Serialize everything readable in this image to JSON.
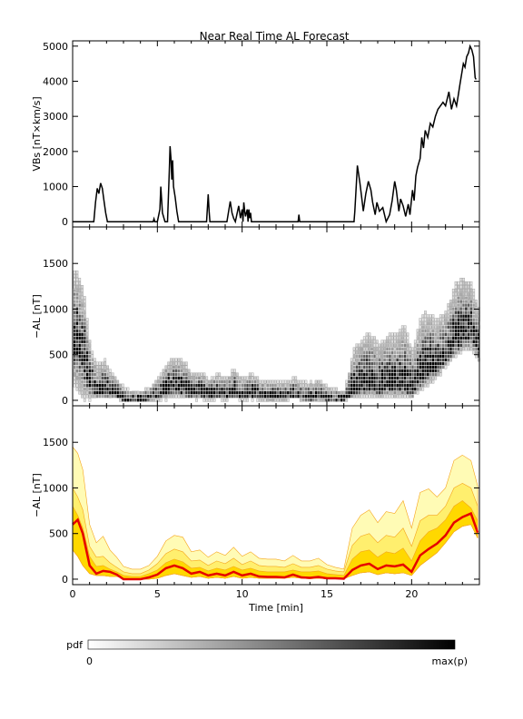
{
  "title": "Near Real Time AL Forecast",
  "colors": {
    "vbs_line": "#000000",
    "al_band_outer": "#fffbb5",
    "al_band_mid": "#ffef6e",
    "al_band_inner": "#ffd800",
    "al_band_edge": "#f5a41c",
    "al_median": "#e60000",
    "pdf_max": "#000000",
    "pdf_zero": "#ffffff"
  },
  "colorbar": {
    "label": "pdf",
    "min_label": "0",
    "max_label": "max(p)"
  },
  "chart_data": [
    {
      "type": "line",
      "name": "vbs-panel",
      "ylabel": "VBs [nT×km/s]",
      "xlim": [
        0,
        24
      ],
      "ylim": [
        -150,
        5150
      ],
      "yticks": [
        0,
        1000,
        2000,
        3000,
        4000,
        5000
      ],
      "xticks": [
        0,
        5,
        10,
        15,
        20
      ],
      "series": [
        {
          "x": [
            0,
            1.25,
            1.35,
            1.45,
            1.55,
            1.65,
            1.75,
            1.85,
            1.95,
            2.05,
            2.2,
            4.75,
            4.8,
            4.85,
            5.0,
            5.15,
            5.2,
            5.3,
            5.45,
            5.6,
            5.7,
            5.75,
            5.8,
            5.85,
            5.9,
            5.95,
            6.05,
            6.15,
            6.25,
            6.35,
            7.9,
            8.0,
            8.05,
            8.1,
            9.1,
            9.3,
            9.4,
            9.5,
            9.6,
            9.8,
            9.9,
            10.0,
            10.05,
            10.1,
            10.15,
            10.2,
            10.3,
            10.35,
            10.4,
            10.45,
            10.5,
            10.55,
            10.65,
            13.3,
            13.35,
            13.4,
            16.6,
            16.65,
            16.8,
            16.95,
            17.05,
            17.15,
            17.3,
            17.45,
            17.6,
            17.7,
            17.85,
            17.95,
            18.1,
            18.3,
            18.5,
            18.7,
            18.85,
            19.0,
            19.1,
            19.25,
            19.35,
            19.5,
            19.65,
            19.8,
            19.9,
            20.05,
            20.15,
            20.25,
            20.35,
            20.5,
            20.6,
            20.7,
            20.8,
            20.95,
            21.1,
            21.25,
            21.4,
            21.55,
            21.7,
            21.85,
            22.0,
            22.2,
            22.35,
            22.5,
            22.65,
            22.75,
            22.85,
            22.95,
            23.05,
            23.15,
            23.25,
            23.35,
            23.45,
            23.55,
            23.65,
            23.75,
            23.8
          ],
          "y": [
            0,
            0,
            550,
            950,
            800,
            1100,
            950,
            600,
            250,
            0,
            0,
            0,
            80,
            0,
            0,
            350,
            1000,
            250,
            0,
            0,
            1400,
            2150,
            1800,
            1200,
            1750,
            1000,
            700,
            300,
            0,
            0,
            0,
            780,
            300,
            0,
            0,
            580,
            250,
            100,
            0,
            450,
            100,
            350,
            0,
            550,
            300,
            150,
            350,
            0,
            350,
            100,
            250,
            0,
            0,
            0,
            200,
            0,
            0,
            300,
            1600,
            1100,
            700,
            300,
            800,
            1150,
            900,
            550,
            200,
            550,
            300,
            400,
            0,
            200,
            600,
            1150,
            900,
            300,
            650,
            450,
            150,
            500,
            200,
            900,
            600,
            1300,
            1550,
            1800,
            2400,
            2100,
            2600,
            2400,
            2800,
            2700,
            3000,
            3200,
            3300,
            3400,
            3300,
            3700,
            3200,
            3500,
            3300,
            3600,
            3900,
            4200,
            4500,
            4400,
            4700,
            4800,
            5000,
            4900,
            4700,
            4100,
            4050
          ]
        }
      ]
    },
    {
      "type": "heatmap",
      "name": "al-pdf-panel",
      "ylabel": "−AL [nT]",
      "xlim": [
        0,
        24
      ],
      "ylim": [
        -60,
        1900
      ],
      "yticks": [
        0,
        500,
        1000,
        1500
      ],
      "xticks": [
        0,
        5,
        10,
        15,
        20
      ],
      "pdf_scale": "0 to max(p)"
    },
    {
      "type": "area",
      "name": "al-forecast-panel",
      "ylabel": "−AL [nT]",
      "xlabel": "Time [min]",
      "xlim": [
        0,
        24
      ],
      "ylim": [
        -60,
        1900
      ],
      "yticks": [
        0,
        500,
        1000,
        1500
      ],
      "xticks": [
        0,
        5,
        10,
        15,
        20
      ],
      "x": [
        0,
        0.3,
        0.6,
        1.0,
        1.4,
        1.8,
        2.2,
        2.6,
        3.0,
        3.5,
        4.0,
        4.5,
        5.0,
        5.5,
        6.0,
        6.5,
        7.0,
        7.5,
        8.0,
        8.5,
        9.0,
        9.5,
        10.0,
        10.5,
        11.0,
        11.5,
        12.0,
        12.5,
        13.0,
        13.5,
        14.0,
        14.5,
        15.0,
        15.5,
        16.0,
        16.5,
        17.0,
        17.5,
        18.0,
        18.5,
        19.0,
        19.5,
        20.0,
        20.5,
        21.0,
        21.5,
        22.0,
        22.5,
        23.0,
        23.5,
        23.9
      ],
      "series": [
        {
          "role": "upper-envelope",
          "values": [
            1450,
            1380,
            1200,
            600,
            400,
            470,
            320,
            240,
            140,
            110,
            110,
            150,
            250,
            420,
            480,
            460,
            300,
            320,
            240,
            300,
            260,
            350,
            250,
            300,
            230,
            220,
            220,
            200,
            260,
            200,
            200,
            230,
            160,
            130,
            110,
            560,
            700,
            760,
            620,
            740,
            720,
            860,
            560,
            950,
            990,
            900,
            1000,
            1300,
            1360,
            1300,
            1020
          ]
        },
        {
          "role": "middle-band",
          "values": [
            1000,
            900,
            760,
            360,
            240,
            250,
            180,
            130,
            80,
            60,
            60,
            100,
            170,
            280,
            330,
            300,
            200,
            210,
            150,
            200,
            170,
            230,
            160,
            200,
            150,
            140,
            140,
            130,
            170,
            130,
            130,
            150,
            110,
            90,
            80,
            370,
            470,
            500,
            400,
            480,
            460,
            560,
            360,
            640,
            700,
            700,
            800,
            1000,
            1050,
            1000,
            800
          ]
        },
        {
          "role": "inner-band",
          "values": [
            800,
            700,
            560,
            250,
            140,
            150,
            110,
            80,
            40,
            30,
            30,
            60,
            100,
            180,
            220,
            190,
            120,
            130,
            90,
            120,
            100,
            140,
            100,
            120,
            90,
            80,
            80,
            80,
            100,
            80,
            80,
            90,
            60,
            50,
            40,
            220,
            300,
            320,
            240,
            300,
            280,
            340,
            200,
            420,
            520,
            560,
            650,
            800,
            860,
            780,
            640
          ]
        },
        {
          "role": "median",
          "values": [
            600,
            650,
            500,
            150,
            60,
            90,
            80,
            50,
            0,
            0,
            0,
            20,
            50,
            120,
            150,
            120,
            60,
            80,
            40,
            60,
            40,
            80,
            40,
            60,
            30,
            25,
            25,
            20,
            50,
            20,
            15,
            25,
            10,
            10,
            5,
            100,
            150,
            170,
            110,
            150,
            140,
            160,
            80,
            260,
            330,
            390,
            480,
            620,
            680,
            720,
            510
          ]
        },
        {
          "role": "lower-envelope",
          "values": [
            320,
            250,
            150,
            60,
            40,
            40,
            30,
            30,
            10,
            0,
            0,
            0,
            10,
            40,
            60,
            40,
            20,
            30,
            10,
            20,
            10,
            30,
            10,
            20,
            10,
            10,
            10,
            10,
            20,
            10,
            5,
            10,
            5,
            5,
            5,
            40,
            70,
            80,
            50,
            70,
            60,
            70,
            40,
            150,
            220,
            290,
            400,
            520,
            580,
            600,
            450
          ]
        }
      ]
    }
  ]
}
